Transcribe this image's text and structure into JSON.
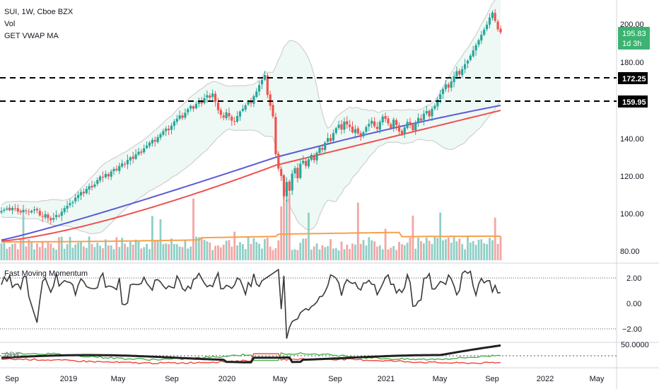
{
  "header": {
    "symbol_line": "SUI, 1W, Cboe BZX",
    "vol_label": "Vol",
    "vwap_label": "GET VWAP MA"
  },
  "price_axis": {
    "ticks": [
      "200.00",
      "180.00",
      "140.00",
      "120.00",
      "100.00",
      "80.00"
    ],
    "last_price": "195.83",
    "countdown": "1d 3h",
    "level_1": "172.25",
    "level_2": "159.95"
  },
  "momentum_pane": {
    "label": "Fast Moving Momentum",
    "ticks": [
      "2.00",
      "0.00",
      "−2.00"
    ]
  },
  "adx_pane": {
    "label": "ADX",
    "tick": "50.0000"
  },
  "time_axis": [
    "Sep",
    "2019",
    "May",
    "Sep",
    "2020",
    "May",
    "Sep",
    "2021",
    "May",
    "Sep",
    "2022",
    "May"
  ],
  "colors": {
    "up": "#26a69a",
    "down": "#ef5350",
    "vwap_ma": "#5b5bd6",
    "ma_red": "#f05050",
    "bands": "#c8c8c8",
    "band_fill": "#eef8f4",
    "volume_ma": "#f7a04b",
    "momentum": "#3a3a3a",
    "adx": "#202020",
    "di_plus": "#4caf50",
    "di_minus": "#f44336",
    "last_price_bg": "#3cb371"
  },
  "chart_data": {
    "type": "candlestick",
    "timeframe": "1W",
    "ylim": [
      78,
      212
    ],
    "horizontal_levels": [
      172.25,
      159.95
    ],
    "last_price": 195.83,
    "closes": [
      103.5,
      104.2,
      104.8,
      103.9,
      105.1,
      104.6,
      103.2,
      102.8,
      104.1,
      103.4,
      102.9,
      103.6,
      104.3,
      103.8,
      101.2,
      100.5,
      101.8,
      99.8,
      98.7,
      99.9,
      101.4,
      100.8,
      103.1,
      104.9,
      106.2,
      107.5,
      108.1,
      110.4,
      111.8,
      113.2,
      112.6,
      114.9,
      116.3,
      115.7,
      117.2,
      119.5,
      121.3,
      120.8,
      122.6,
      121.4,
      123.9,
      125.2,
      124.6,
      126.8,
      128.1,
      127.5,
      129.9,
      131.2,
      130.4,
      132.8,
      134.1,
      133.5,
      135.9,
      137.3,
      138.8,
      140.2,
      139.4,
      141.7,
      143.2,
      144.8,
      146.1,
      145.3,
      147.6,
      149.8,
      151.2,
      152.9,
      151.6,
      154.3,
      156.2,
      157.8,
      156.4,
      158.9,
      160.5,
      159.1,
      161.8,
      163.4,
      162.1,
      164.2,
      159.8,
      155.6,
      153.2,
      151.8,
      154.5,
      152.4,
      150.2,
      149.8,
      152.6,
      154.9,
      156.3,
      158.1,
      160.4,
      159.2,
      162.8,
      165.3,
      168.6,
      171.2,
      173.8,
      163.5,
      157.9,
      152.4,
      132.8,
      125.4,
      121.6,
      111.2,
      118.5,
      113.9,
      122.8,
      125.6,
      120.4,
      127.9,
      129.4,
      126.8,
      130.2,
      132.5,
      129.8,
      133.7,
      136.4,
      135.1,
      138.9,
      141.2,
      139.6,
      143.8,
      146.3,
      148.1,
      145.6,
      149.7,
      148.2,
      146.9,
      144.1,
      145.8,
      143.5,
      141.8,
      144.2,
      146.9,
      148.5,
      150.1,
      147.3,
      145.9,
      149.6,
      152.3,
      151.1,
      148.7,
      146.4,
      150.8,
      147.9,
      144.6,
      143.2,
      146.7,
      149.5,
      147.8,
      145.2,
      148.9,
      151.6,
      150.2,
      153.8,
      155.1,
      152.4,
      156.3,
      157.9,
      161.2,
      163.8,
      166.5,
      168.9,
      167.3,
      170.4,
      173.2,
      175.8,
      174.1,
      176.9,
      179.4,
      181.2,
      183.8,
      186.5,
      189.2,
      191.8,
      194.6,
      197.3,
      199.8,
      203.5,
      206.1,
      201.8,
      197.4,
      195.83
    ],
    "moving_averages": [
      {
        "name": "GET VWAP MA",
        "start": 88.5,
        "end": 157.5
      },
      {
        "name": "MA",
        "start": 88.0,
        "end": 155.5
      }
    ],
    "momentum": {
      "name": "Fast Moving Momentum",
      "ylim": [
        -3.2,
        3.0
      ],
      "reference_lines": [
        2.0,
        -2.0
      ],
      "last": 0.85
    },
    "adx": {
      "name": "ADX",
      "reference_line": 50,
      "last": 62
    }
  }
}
